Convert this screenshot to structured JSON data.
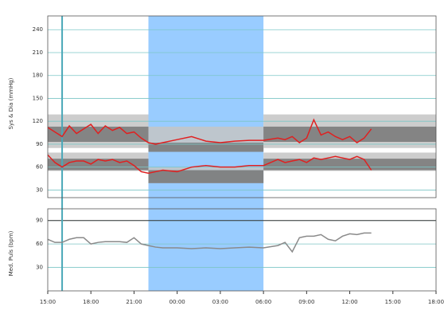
{
  "chart_data": {
    "type": "line",
    "ylabel": "Sys & Dia (mmHg)",
    "y2label": "Med. Puls (bpm)",
    "x": [
      0,
      0.5,
      1,
      1.5,
      2,
      2.5,
      3,
      3.5,
      4,
      4.5,
      5,
      5.5,
      6,
      6.5,
      7,
      7.5,
      8,
      9,
      10,
      11,
      12,
      13,
      14,
      15,
      16,
      16.5,
      17,
      17.5,
      18,
      18.5,
      19,
      19.5,
      20,
      20.5,
      21,
      21.5,
      22,
      22.5
    ],
    "series": [
      {
        "name": "Sys",
        "color": "#e02020",
        "panel": "top",
        "values": [
          112,
          106,
          100,
          114,
          104,
          110,
          116,
          104,
          114,
          108,
          112,
          104,
          106,
          98,
          92,
          90,
          92,
          96,
          100,
          94,
          92,
          94,
          95,
          95,
          98,
          96,
          100,
          92,
          98,
          122,
          102,
          106,
          100,
          96,
          100,
          92,
          98,
          110
        ]
      },
      {
        "name": "Dia",
        "color": "#e02020",
        "panel": "top",
        "values": [
          76,
          66,
          60,
          66,
          68,
          68,
          64,
          70,
          68,
          70,
          66,
          68,
          62,
          54,
          52,
          54,
          56,
          54,
          60,
          62,
          60,
          60,
          62,
          62,
          70,
          66,
          68,
          70,
          66,
          72,
          70,
          72,
          74,
          72,
          70,
          74,
          70,
          56
        ]
      },
      {
        "name": "Puls",
        "color": "#8a8a8a",
        "panel": "bottom",
        "values": [
          66,
          62,
          62,
          66,
          68,
          68,
          60,
          62,
          63,
          63,
          63,
          62,
          68,
          60,
          58,
          56,
          55,
          55,
          54,
          55,
          54,
          55,
          56,
          55,
          58,
          62,
          50,
          68,
          70,
          70,
          72,
          66,
          64,
          70,
          73,
          72,
          74,
          74
        ]
      }
    ],
    "xlim": [
      0,
      27
    ],
    "xticks": [
      {
        "value": 0,
        "label": "15:00"
      },
      {
        "value": 3,
        "label": "18:00"
      },
      {
        "value": 6,
        "label": "21:00"
      },
      {
        "value": 9,
        "label": "00:00"
      },
      {
        "value": 12,
        "label": "03:00"
      },
      {
        "value": 15,
        "label": "06:00"
      },
      {
        "value": 18,
        "label": "09:00"
      },
      {
        "value": 21,
        "label": "12:00"
      },
      {
        "value": 24,
        "label": "15:00"
      },
      {
        "value": 27,
        "label": "18:00"
      }
    ],
    "ylim": [
      20,
      258
    ],
    "yticks": [
      30,
      60,
      90,
      120,
      150,
      180,
      210,
      240
    ],
    "y2lim": [
      0,
      105
    ],
    "y2ticks": [
      30,
      60,
      90
    ],
    "y2refline": 90,
    "night": [
      7,
      15
    ],
    "night_color": "#99ccff",
    "marker_x": 1,
    "grid": true,
    "zones": [
      {
        "from": 0,
        "to": 7,
        "sys_light": [
          85,
          129
        ],
        "sys_dark": [
          93,
          113
        ],
        "dia_light": [
          55,
          79
        ],
        "dia_dark": [
          56,
          71
        ]
      },
      {
        "from": 7,
        "to": 15,
        "sys_light": [
          80,
          113
        ],
        "sys_dark": [
          80,
          92
        ],
        "dia_light": [
          39,
          60
        ],
        "dia_dark": [
          39,
          56
        ]
      },
      {
        "from": 15,
        "to": 27,
        "sys_light": [
          85,
          129
        ],
        "sys_dark": [
          93,
          113
        ],
        "dia_light": [
          55,
          79
        ],
        "dia_dark": [
          56,
          71
        ]
      }
    ]
  }
}
